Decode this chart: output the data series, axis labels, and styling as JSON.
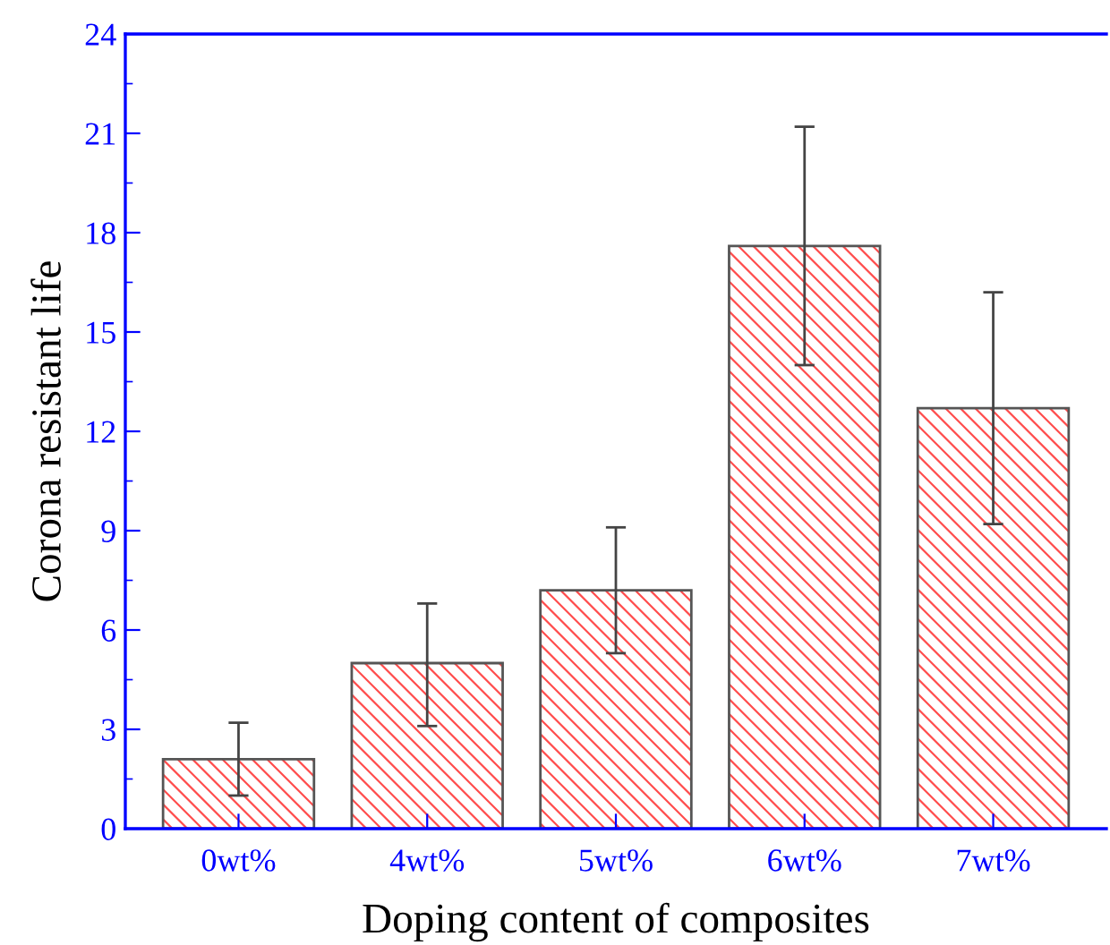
{
  "chart_data": {
    "type": "bar",
    "xlabel": "Doping content of composites",
    "ylabel": "Corona resistant life",
    "categories": [
      "0wt%",
      "4wt%",
      "5wt%",
      "6wt%",
      "7wt%"
    ],
    "values": [
      2.1,
      5.0,
      7.2,
      17.6,
      12.7
    ],
    "errors": [
      [
        1.0,
        3.2
      ],
      [
        3.1,
        6.8
      ],
      [
        5.3,
        9.1
      ],
      [
        14.0,
        21.2
      ],
      [
        9.2,
        16.2
      ]
    ],
    "color": "#ff4d4d",
    "ylim": [
      0,
      24
    ],
    "yticks": [
      0,
      3,
      6,
      9,
      12,
      15,
      18,
      21,
      24
    ],
    "grid": false,
    "legend": false
  }
}
